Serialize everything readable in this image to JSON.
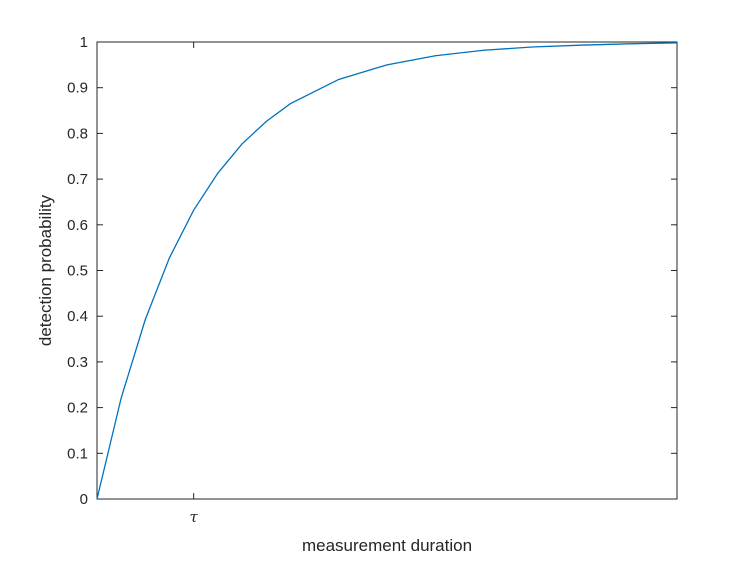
{
  "chart_data": {
    "type": "line",
    "title": "",
    "xlabel": "measurement duration",
    "ylabel": "detection probability",
    "x_range_tau_units": [
      0,
      6
    ],
    "ylim": [
      0,
      1
    ],
    "x_ticks": [
      {
        "value": 1,
        "label": "τ"
      }
    ],
    "y_ticks": [
      {
        "value": 0,
        "label": "0"
      },
      {
        "value": 0.1,
        "label": "0.1"
      },
      {
        "value": 0.2,
        "label": "0.2"
      },
      {
        "value": 0.3,
        "label": "0.3"
      },
      {
        "value": 0.4,
        "label": "0.4"
      },
      {
        "value": 0.5,
        "label": "0.5"
      },
      {
        "value": 0.6,
        "label": "0.6"
      },
      {
        "value": 0.7,
        "label": "0.7"
      },
      {
        "value": 0.8,
        "label": "0.8"
      },
      {
        "value": 0.9,
        "label": "0.9"
      },
      {
        "value": 1,
        "label": "1"
      }
    ],
    "series": [
      {
        "color": "#0072BD",
        "x": [
          0,
          0.25,
          0.5,
          0.75,
          1,
          1.25,
          1.5,
          1.75,
          2,
          2.5,
          3,
          3.5,
          4,
          4.5,
          5,
          5.5,
          6
        ],
        "y": [
          0,
          0.221,
          0.393,
          0.528,
          0.632,
          0.713,
          0.777,
          0.826,
          0.865,
          0.918,
          0.95,
          0.97,
          0.982,
          0.989,
          0.993,
          0.996,
          0.998
        ]
      }
    ],
    "grid": false,
    "box": true,
    "legend": "none"
  }
}
